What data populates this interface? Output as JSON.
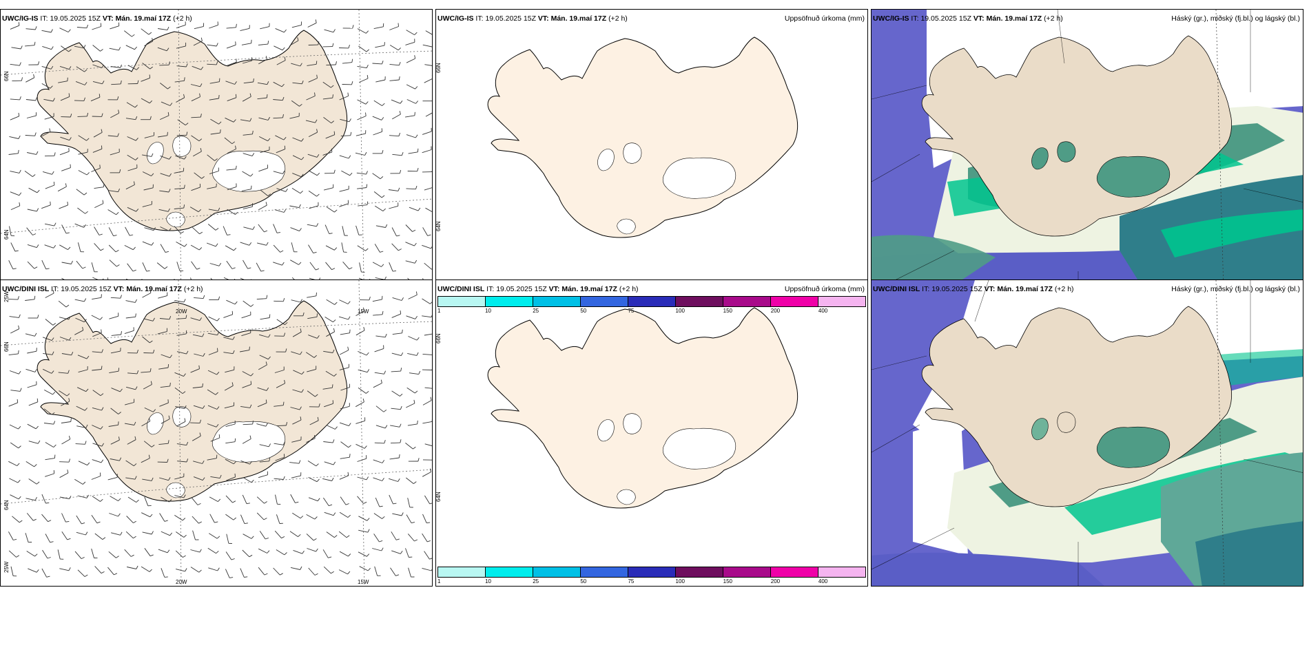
{
  "rows": [
    {
      "model": "UWC/IG-IS",
      "it_label": "IT:",
      "it_value": "19.05.2025 15Z",
      "vt_label": "VT:",
      "vt_value": "Mán. 19.maí 17Z",
      "lead": "(+2 h)"
    },
    {
      "model": "UWC/DINI ISL",
      "it_label": "IT:",
      "it_value": "19.05.2025 15Z",
      "vt_label": "VT:",
      "vt_value": "Mán. 19.maí 17Z",
      "lead": "(+2 h)"
    }
  ],
  "precip_title": "Uppsöfnuð úrkoma (mm)",
  "cloud_title": "Háský (gr.), miðský (fj.bl.) og lágský (bl.)",
  "grid_labels": {
    "lat_66": "66N",
    "lat_64": "64N",
    "lon_20": "20W",
    "lon_15": "15W",
    "lon_25": "25W"
  },
  "precip_scale": {
    "ticks": [
      "1",
      "10",
      "25",
      "50",
      "75",
      "100",
      "150",
      "200",
      "400"
    ],
    "colors": [
      "#b8f7f2",
      "#00eded",
      "#00c0e6",
      "#3366e0",
      "#2a2cb8",
      "#6e0e5e",
      "#a80a8a",
      "#f000a8",
      "#f5b4f0"
    ]
  },
  "colors": {
    "land_wind": "#f2e6d6",
    "land_precip": "#fdf1e3",
    "sea_mid_cloud": "#6666cc",
    "cloud_green_dark": "#4f9c86",
    "cloud_green_bright": "#00c48e",
    "cloud_teal": "#2f7e8a"
  }
}
